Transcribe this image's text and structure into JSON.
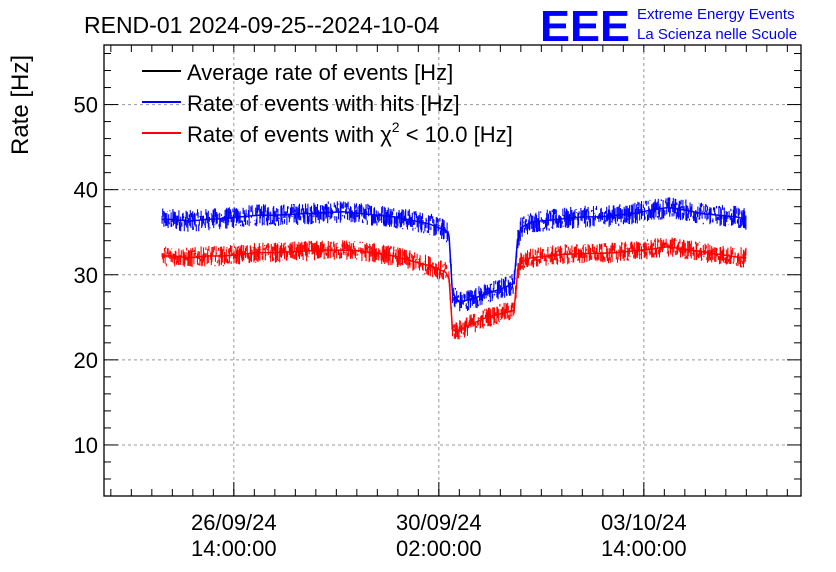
{
  "chart_data": {
    "type": "line",
    "title": "REND-01 2024-09-25--2024-10-04",
    "ylabel": "Rate [Hz]",
    "xlabel": "",
    "ylim": [
      4,
      57
    ],
    "yticks": [
      10,
      20,
      30,
      40,
      50
    ],
    "x_range_hours": [
      0,
      204
    ],
    "xticks": [
      {
        "hours": 38,
        "date": "26/09/24",
        "time": "14:00:00"
      },
      {
        "hours": 98,
        "date": "30/09/24",
        "time": "02:00:00"
      },
      {
        "hours": 158,
        "date": "03/10/24",
        "time": "14:00:00"
      }
    ],
    "grid": true,
    "legend_position": "top-left",
    "legend": [
      {
        "label": "Average rate of events [Hz]",
        "color": "#000000"
      },
      {
        "label": "Rate of events with hits [Hz]",
        "color": "#0000ff"
      },
      {
        "label_prefix": "Rate of events with ",
        "label_symbol": "χ",
        "label_sup": "2",
        "label_suffix": " < 10.0 [Hz]",
        "color": "#ff0000"
      }
    ],
    "series": [
      {
        "name": "Rate of events with hits [Hz]",
        "color": "#0000ff",
        "x": [
          17,
          20,
          25,
          30,
          35,
          40,
          45,
          50,
          55,
          60,
          65,
          70,
          75,
          80,
          85,
          90,
          95,
          100,
          101,
          102,
          104,
          108,
          112,
          116,
          120,
          121,
          122,
          125,
          130,
          135,
          140,
          145,
          150,
          155,
          160,
          165,
          170,
          175,
          180,
          185,
          188
        ],
        "values": [
          36.5,
          36.5,
          36.3,
          36.5,
          36.6,
          36.8,
          37.0,
          37.0,
          37.1,
          37.2,
          37.3,
          37.4,
          37.2,
          37.0,
          36.8,
          36.4,
          36.0,
          35.2,
          34.5,
          27.8,
          26.8,
          27.2,
          27.8,
          28.3,
          29.0,
          34.0,
          35.5,
          36.2,
          36.4,
          36.6,
          36.8,
          36.8,
          37.0,
          37.2,
          37.6,
          37.9,
          37.6,
          37.2,
          37.0,
          36.8,
          36.5
        ],
        "noise": 1.3
      },
      {
        "name": "Rate of events with χ2 < 10.0 [Hz]",
        "color": "#ff0000",
        "x": [
          17,
          20,
          25,
          30,
          35,
          40,
          45,
          50,
          55,
          60,
          65,
          70,
          75,
          80,
          85,
          90,
          95,
          100,
          101,
          102,
          104,
          108,
          112,
          116,
          120,
          121,
          122,
          125,
          130,
          135,
          140,
          145,
          150,
          155,
          160,
          165,
          170,
          175,
          180,
          185,
          188
        ],
        "values": [
          32.2,
          32.2,
          32.0,
          32.2,
          32.2,
          32.4,
          32.6,
          32.6,
          32.7,
          32.8,
          32.9,
          32.9,
          32.8,
          32.5,
          32.2,
          31.6,
          31.1,
          30.3,
          29.5,
          23.5,
          23.5,
          24.3,
          25.0,
          25.4,
          25.8,
          30.0,
          31.5,
          32.0,
          32.2,
          32.4,
          32.5,
          32.5,
          32.6,
          32.8,
          33.0,
          33.3,
          33.0,
          32.7,
          32.4,
          32.1,
          32.0
        ],
        "noise": 1.2
      }
    ]
  },
  "logo": {
    "text": "EEE",
    "line1": "Extreme Energy Events",
    "line2": "La Scienza nelle Scuole",
    "color": "#0000ff"
  }
}
